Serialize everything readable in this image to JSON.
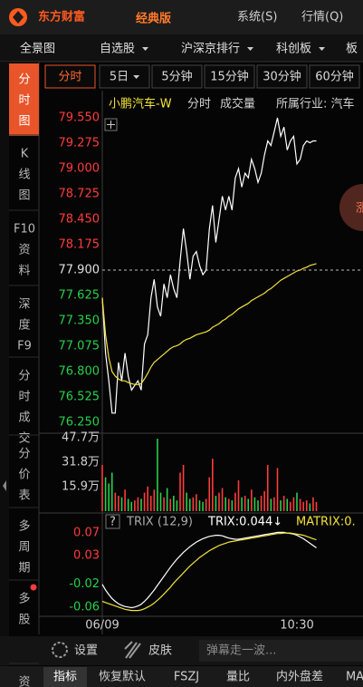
{
  "app": {
    "header": {
      "logo": "东方财富",
      "edition": "经典版",
      "menu": [
        "系统(S)",
        "行情(Q)"
      ]
    },
    "nav": [
      "全景图",
      "自选股",
      "沪深京排行",
      "科创板",
      "板"
    ],
    "nav_dropdown": [
      false,
      true,
      true,
      true,
      false
    ],
    "sidebar": [
      [
        "分",
        "时",
        "图"
      ],
      [
        "K",
        "线",
        "图"
      ],
      [
        "F10",
        "资",
        "料"
      ],
      [
        "深",
        "度",
        "F9"
      ],
      [
        "分",
        "时",
        "成",
        "交"
      ],
      [
        "分",
        "价",
        "表"
      ],
      [
        "多",
        "周",
        "期"
      ],
      [
        "多",
        "股"
      ],
      [
        "资"
      ]
    ],
    "sidebar_active": 0,
    "periods": [
      "分时",
      "5日",
      "5分钟",
      "15分钟",
      "30分钟",
      "60分钟"
    ],
    "period_dropdown": [
      false,
      true,
      false,
      false,
      false,
      false
    ],
    "period_active": 0,
    "info": [
      "小鹏汽车-W",
      "分时",
      "成交量",
      "所属行业: 汽车"
    ],
    "float_button": "涨",
    "help": "?",
    "toolbar": [
      "设置",
      "皮肤"
    ],
    "danmu_placeholder": "弹幕走一波...",
    "bottom_tabs": [
      "指标",
      "恢复默认",
      "FSZJ",
      "量比",
      "内外盘差",
      "MA"
    ],
    "bottom_active": 0
  },
  "chart_data": [
    {
      "type": "line",
      "categories": [
        "09:30",
        "09:31",
        "09:32",
        "09:33",
        "09:34",
        "09:35",
        "09:36",
        "09:37",
        "09:38",
        "09:39",
        "09:40",
        "09:41",
        "09:42",
        "09:43",
        "09:44",
        "09:45",
        "09:46",
        "09:47",
        "09:48",
        "09:49",
        "09:50",
        "09:51",
        "09:52",
        "09:53",
        "09:54",
        "09:55",
        "09:56",
        "09:57",
        "09:58",
        "09:59",
        "10:00",
        "10:01",
        "10:02",
        "10:03",
        "10:04",
        "10:05",
        "10:06",
        "10:07",
        "10:08",
        "10:09",
        "10:10",
        "10:11",
        "10:12",
        "10:13",
        "10:14",
        "10:15",
        "10:16",
        "10:17",
        "10:18",
        "10:19",
        "10:20",
        "10:21",
        "10:22",
        "10:23",
        "10:24",
        "10:25",
        "10:26",
        "10:27",
        "10:28",
        "10:29",
        "10:30",
        "10:31",
        "10:32",
        "10:33",
        "10:34",
        "10:35",
        "10:36"
      ],
      "series": [
        {
          "color": "#ffffff",
          "values": [
            77.6,
            77.0,
            76.7,
            76.35,
            76.35,
            76.9,
            76.7,
            77.0,
            76.75,
            76.6,
            76.65,
            76.7,
            76.6,
            77.1,
            77.2,
            77.6,
            77.8,
            77.5,
            77.4,
            77.75,
            77.6,
            77.85,
            77.7,
            77.6,
            78.0,
            78.35,
            78.1,
            77.8,
            78.05,
            78.1,
            77.95,
            77.85,
            77.9,
            78.35,
            78.6,
            78.2,
            78.45,
            78.7,
            78.55,
            78.7,
            78.55,
            78.9,
            79.0,
            78.8,
            78.95,
            78.9,
            79.1,
            79.0,
            78.85,
            78.95,
            79.15,
            79.3,
            79.25,
            79.4,
            79.55,
            79.35,
            79.45,
            79.2,
            79.3,
            79.35,
            79.05,
            79.1,
            79.25,
            79.3,
            79.28,
            79.3,
            79.3
          ]
        },
        {
          "color": "#f2e23a",
          "values": [
            77.6,
            77.2,
            76.95,
            76.8,
            76.75,
            76.72,
            76.7,
            76.7,
            76.68,
            76.67,
            76.66,
            76.66,
            76.67,
            76.72,
            76.78,
            76.85,
            76.9,
            76.93,
            76.96,
            76.99,
            77.02,
            77.05,
            77.07,
            77.08,
            77.1,
            77.13,
            77.15,
            77.16,
            77.18,
            77.2,
            77.21,
            77.22,
            77.23,
            77.25,
            77.28,
            77.3,
            77.32,
            77.35,
            77.37,
            77.4,
            77.42,
            77.45,
            77.48,
            77.5,
            77.52,
            77.54,
            77.57,
            77.59,
            77.61,
            77.63,
            77.65,
            77.68,
            77.7,
            77.73,
            77.76,
            77.79,
            77.81,
            77.83,
            77.85,
            77.87,
            77.89,
            77.9,
            77.92,
            77.93,
            77.95,
            77.96,
            77.97
          ]
        }
      ],
      "ylim": [
        76.25,
        79.55
      ],
      "yticks": [
        {
          "value": 79.55,
          "label": "79.550"
        },
        {
          "value": 79.275,
          "label": "79.275"
        },
        {
          "value": 79.0,
          "label": "79.000"
        },
        {
          "value": 78.725,
          "label": "78.725"
        },
        {
          "value": 78.45,
          "label": "78.450"
        },
        {
          "value": 78.175,
          "label": "78.175"
        },
        {
          "value": 77.9,
          "label": "77.900"
        },
        {
          "value": 77.625,
          "label": "77.625"
        },
        {
          "value": 77.35,
          "label": "77.350"
        },
        {
          "value": 77.075,
          "label": "77.075"
        },
        {
          "value": 76.8,
          "label": "76.800"
        },
        {
          "value": 76.525,
          "label": "76.525"
        },
        {
          "value": 76.25,
          "label": "76.250"
        }
      ],
      "tick_colors": {
        "above": "#ff3b3b",
        "at": "#e0e0e0",
        "below": "#26d04a"
      },
      "xticks": [
        {
          "value": "09:30",
          "label": "06/09"
        },
        "10:30"
      ]
    },
    {
      "type": "bar",
      "values": [
        30,
        22,
        18,
        25,
        12,
        10,
        9,
        14,
        8,
        6,
        7,
        9,
        8,
        12,
        16,
        10,
        14,
        47,
        12,
        9,
        15,
        8,
        10,
        7,
        25,
        30,
        12,
        8,
        9,
        11,
        7,
        6,
        8,
        22,
        34,
        10,
        12,
        15,
        9,
        8,
        7,
        12,
        20,
        9,
        10,
        8,
        14,
        9,
        7,
        10,
        13,
        30,
        8,
        9,
        28,
        7,
        10,
        8,
        6,
        9,
        12,
        8,
        6,
        7,
        5,
        9,
        6
      ],
      "ylim": [
        0,
        50.6
      ],
      "yticks": [
        {
          "value": 47.7,
          "label": "47.7万"
        },
        {
          "value": 31.8,
          "label": "31.8万"
        },
        {
          "value": 15.9,
          "label": "15.9万"
        }
      ],
      "up_color": "#ff3b3b",
      "down_color": "#26d04a"
    },
    {
      "type": "line",
      "title": "TRIX (12,9)",
      "annotations": [
        "TRIX:0.044↓",
        "MATRIX:0."
      ],
      "series": [
        {
          "color": "#ffffff",
          "values": [
            -0.02,
            -0.03,
            -0.038,
            -0.045,
            -0.05,
            -0.054,
            -0.057,
            -0.059,
            -0.06,
            -0.061,
            -0.06,
            -0.058,
            -0.055,
            -0.05,
            -0.044,
            -0.037,
            -0.03,
            -0.022,
            -0.014,
            -0.006,
            0.002,
            0.01,
            0.017,
            0.024,
            0.03,
            0.036,
            0.041,
            0.046,
            0.05,
            0.054,
            0.057,
            0.06,
            0.062,
            0.064,
            0.065,
            0.066,
            0.066,
            0.065,
            0.063,
            0.061,
            0.06,
            0.059,
            0.059,
            0.06,
            0.061,
            0.062,
            0.063,
            0.064,
            0.065,
            0.066,
            0.067,
            0.068,
            0.069,
            0.07,
            0.071,
            0.071,
            0.071,
            0.07,
            0.069,
            0.068,
            0.066,
            0.063,
            0.06,
            0.056,
            0.052,
            0.048,
            0.044
          ]
        },
        {
          "color": "#f2e23a",
          "values": [
            -0.05,
            -0.052,
            -0.054,
            -0.056,
            -0.058,
            -0.06,
            -0.062,
            -0.064,
            -0.065,
            -0.066,
            -0.066,
            -0.066,
            -0.065,
            -0.063,
            -0.06,
            -0.057,
            -0.053,
            -0.048,
            -0.043,
            -0.037,
            -0.031,
            -0.025,
            -0.018,
            -0.012,
            -0.006,
            0,
            0.006,
            0.012,
            0.017,
            0.022,
            0.027,
            0.031,
            0.035,
            0.039,
            0.042,
            0.045,
            0.048,
            0.05,
            0.052,
            0.054,
            0.055,
            0.056,
            0.057,
            0.058,
            0.059,
            0.06,
            0.061,
            0.062,
            0.063,
            0.064,
            0.065,
            0.066,
            0.067,
            0.068,
            0.069,
            0.069,
            0.07,
            0.07,
            0.07,
            0.069,
            0.068,
            0.067,
            0.066,
            0.064,
            0.062,
            0.06,
            0.058
          ]
        }
      ],
      "ylim": [
        -0.073,
        0.086
      ],
      "yticks": [
        0.07,
        0.03,
        -0.02,
        -0.06
      ]
    }
  ]
}
